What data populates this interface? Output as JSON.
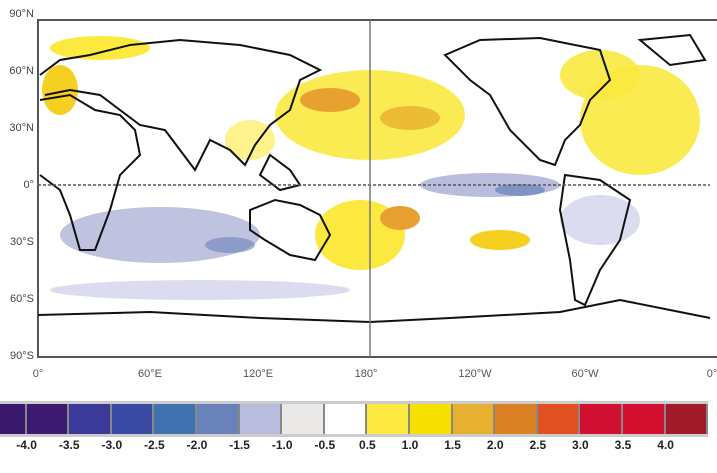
{
  "map": {
    "y_labels": [
      "90°N",
      "60°N",
      "30°N",
      "0°",
      "30°S",
      "60°S",
      "90°S"
    ],
    "x_labels": [
      "0°",
      "60°E",
      "120°E",
      "180°",
      "120°W",
      "60°W",
      "0°"
    ],
    "equator_dashed": true,
    "dateline_line": true
  },
  "colorbar": {
    "labels": [
      "-4.0",
      "-3.5",
      "-3.0",
      "-2.5",
      "-2.0",
      "-1.5",
      "-1.0",
      "-0.5",
      "0.5",
      "1.0",
      "1.5",
      "2.0",
      "2.5",
      "3.0",
      "3.5",
      "4.0"
    ],
    "colors": [
      "#3a196c",
      "#3b1a70",
      "#3c3a98",
      "#3b4aa2",
      "#4172b0",
      "#6a82ba",
      "#b9bcdc",
      "#ebe9e7",
      "#ffffff",
      "#fbe940",
      "#f5e000",
      "#e8b030",
      "#d88022",
      "#e05020",
      "#d01030",
      "#d31030",
      "#a01a2a"
    ]
  }
}
